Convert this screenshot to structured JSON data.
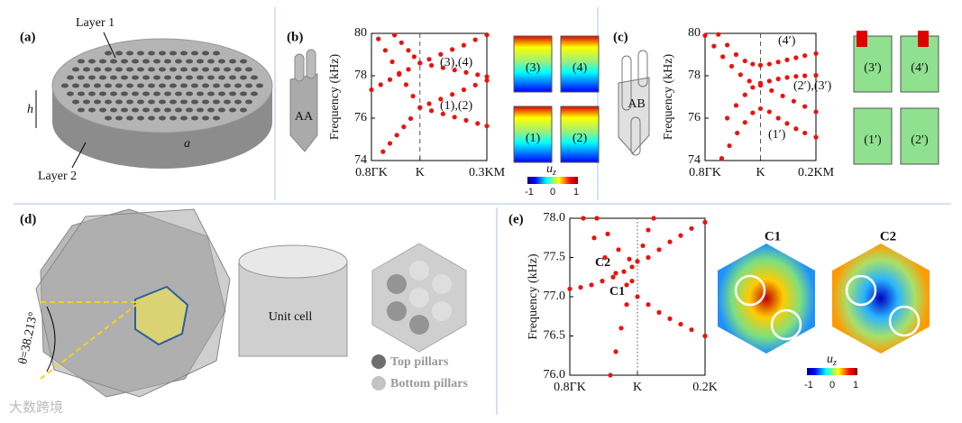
{
  "chart_data": [
    {
      "type": "scatter",
      "xlim": [
        0,
        1
      ],
      "ylim": [
        74,
        80
      ],
      "xticks": [
        {
          "value": 0,
          "label": "0.8ΓK"
        },
        {
          "value": 0.42,
          "label": "K"
        },
        {
          "value": 1,
          "label": "0.3KM"
        }
      ],
      "yticks": [
        74,
        76,
        78,
        80
      ],
      "y_label": "Frequency (kHz)",
      "k_line": "dashed",
      "annotations": [
        "(3),(4)",
        "(1),(2)"
      ],
      "series": [
        {
          "color": "#e8130f",
          "x": [
            0.1,
            0.16,
            0.22,
            0.28,
            0.34,
            0.42,
            0.5,
            0.6,
            0.7,
            0.8,
            0.9,
            1
          ],
          "values": [
            74.42,
            74.81,
            75.2,
            75.59,
            75.98,
            76.5,
            76.68,
            76.9,
            77.12,
            77.34,
            77.56,
            77.78
          ]
        },
        {
          "color": "#e8130f",
          "x": [
            0.06,
            0.12,
            0.18,
            0.24,
            0.3,
            0.36,
            0.42,
            0.52,
            0.62,
            0.72,
            0.82,
            0.92,
            1
          ],
          "values": [
            79.74,
            79.2,
            78.66,
            78.12,
            77.58,
            77.04,
            76.5,
            76.35,
            76.2,
            76.05,
            75.9,
            75.75,
            75.63
          ]
        },
        {
          "color": "#e8130f",
          "x": [
            0.2,
            0.26,
            0.32,
            0.37,
            0.42,
            0.52,
            0.62,
            0.72,
            0.82,
            0.92,
            1
          ],
          "values": [
            79.92,
            79.56,
            79.2,
            78.9,
            78.6,
            78.49,
            78.38,
            78.27,
            78.16,
            78.05,
            77.96
          ]
        },
        {
          "color": "#e8130f",
          "x": [
            0,
            0.08,
            0.16,
            0.24,
            0.32,
            0.42,
            0.5,
            0.6,
            0.7,
            0.8,
            0.9,
            1
          ],
          "values": [
            77.34,
            77.58,
            77.82,
            78.06,
            78.3,
            78.6,
            78.78,
            79.01,
            79.24,
            79.44,
            79.7,
            79.93
          ]
        }
      ]
    },
    {
      "type": "scatter",
      "xlim": [
        0,
        1
      ],
      "ylim": [
        74,
        80
      ],
      "xticks": [
        {
          "value": 0,
          "label": "0.8ΓK"
        },
        {
          "value": 0.5,
          "label": "K"
        },
        {
          "value": 1,
          "label": "0.2KM"
        }
      ],
      "yticks": [
        74,
        76,
        78,
        80
      ],
      "y_label": "Frequency (kHz)",
      "k_line": "dashed",
      "annotations": [
        "(4′)",
        "(2′),(3′)",
        "(1′)"
      ],
      "series": [
        {
          "color": "#e8130f",
          "x": [
            0.15,
            0.22,
            0.29,
            0.36,
            0.43,
            0.5,
            0.58,
            0.66,
            0.74,
            0.82,
            0.9,
            1
          ],
          "values": [
            74.1,
            74.7,
            75.3,
            75.8,
            76.25,
            76.45,
            76.3,
            76.0,
            75.75,
            75.5,
            75.3,
            75.1
          ]
        },
        {
          "color": "#e8130f",
          "x": [
            0,
            0.08,
            0.16,
            0.24,
            0.32,
            0.4,
            0.5,
            0.6,
            0.7,
            0.8,
            0.9,
            1
          ],
          "values": [
            79.9,
            79.4,
            78.9,
            78.45,
            78.05,
            77.75,
            77.55,
            77.3,
            77.05,
            76.8,
            76.55,
            76.3
          ]
        },
        {
          "color": "#e8130f",
          "x": [
            0.2,
            0.28,
            0.36,
            0.43,
            0.5,
            0.58,
            0.66,
            0.74,
            0.82,
            0.9,
            1
          ],
          "values": [
            76.0,
            76.6,
            77.1,
            77.45,
            77.65,
            77.75,
            77.85,
            77.92,
            77.97,
            78.0,
            78.02
          ]
        },
        {
          "color": "#e8130f",
          "x": [
            0.12,
            0.2,
            0.28,
            0.36,
            0.43,
            0.5,
            0.58,
            0.66,
            0.74,
            0.82,
            0.9,
            1
          ],
          "values": [
            79.95,
            79.45,
            79.0,
            78.7,
            78.55,
            78.5,
            78.55,
            78.65,
            78.75,
            78.85,
            78.95,
            79.05
          ]
        }
      ]
    },
    {
      "type": "scatter",
      "xlim": [
        0,
        1
      ],
      "ylim": [
        76,
        78
      ],
      "xticks": [
        {
          "value": 0,
          "label": "0.8ΓK"
        },
        {
          "value": 0.5,
          "label": "K"
        },
        {
          "value": 1,
          "label": "0.2K"
        }
      ],
      "yticks": [
        {
          "value": 76,
          "label": "76.0"
        },
        76.5,
        {
          "value": 77,
          "label": "77.0"
        },
        77.5,
        {
          "value": 78,
          "label": "78.0"
        }
      ],
      "y_label": "Frequency (kHz)",
      "k_line": "dotted",
      "annotations": [
        "C2",
        "C1"
      ],
      "series": [
        {
          "color": "#e8130f",
          "x": [
            0.3,
            0.34,
            0.38,
            0.42,
            0.46,
            0.5,
            0.54,
            0.58,
            0.62
          ],
          "values": [
            76.0,
            76.3,
            76.6,
            76.9,
            77.2,
            77.45,
            77.65,
            77.85,
            78.0
          ]
        },
        {
          "color": "#e8130f",
          "x": [
            0.1,
            0.18,
            0.26,
            0.34,
            0.42,
            0.5,
            0.58,
            0.66,
            0.74,
            0.82,
            0.9,
            1
          ],
          "values": [
            78.0,
            77.75,
            77.5,
            77.3,
            77.15,
            77.0,
            76.9,
            76.8,
            76.72,
            76.65,
            76.58,
            76.5
          ]
        },
        {
          "color": "#e8130f",
          "x": [
            0,
            0.08,
            0.16,
            0.24,
            0.32,
            0.4,
            0.46
          ],
          "values": [
            77.1,
            77.12,
            77.15,
            77.2,
            77.25,
            77.32,
            77.38
          ]
        },
        {
          "color": "#e8130f",
          "x": [
            0.2,
            0.28,
            0.36,
            0.44,
            0.5,
            0.58,
            0.66,
            0.74,
            0.82,
            0.9,
            1
          ],
          "values": [
            78.0,
            77.8,
            77.6,
            77.48,
            77.45,
            77.5,
            77.6,
            77.7,
            77.78,
            77.87,
            77.95
          ]
        }
      ]
    }
  ],
  "panels": {
    "a": {
      "label": "(a)",
      "layer1": "Layer 1",
      "layer2": "Layer 2",
      "h": "h",
      "a": "a"
    },
    "b": {
      "label": "(b)",
      "stacking": "AA",
      "modes": [
        "(3)",
        "(4)",
        "(1)",
        "(2)"
      ],
      "colorbar": {
        "label": "u",
        "sub": "z",
        "ticks": [
          -1,
          0,
          1
        ]
      }
    },
    "c": {
      "label": "(c)",
      "stacking": "AB",
      "modes": [
        "(3′)",
        "(4′)",
        "(1′)",
        "(2′)"
      ]
    },
    "d": {
      "label": "(d)",
      "angle": "θ=38.213°",
      "unit_cell": "Unit cell",
      "top": "Top pillars",
      "bottom": "Bottom pillars"
    },
    "e": {
      "label": "(e)",
      "modes": [
        "C1",
        "C2"
      ],
      "colorbar": {
        "label": "u",
        "sub": "z",
        "ticks": [
          -1,
          0,
          1
        ]
      }
    }
  },
  "watermark": "大数跨境"
}
